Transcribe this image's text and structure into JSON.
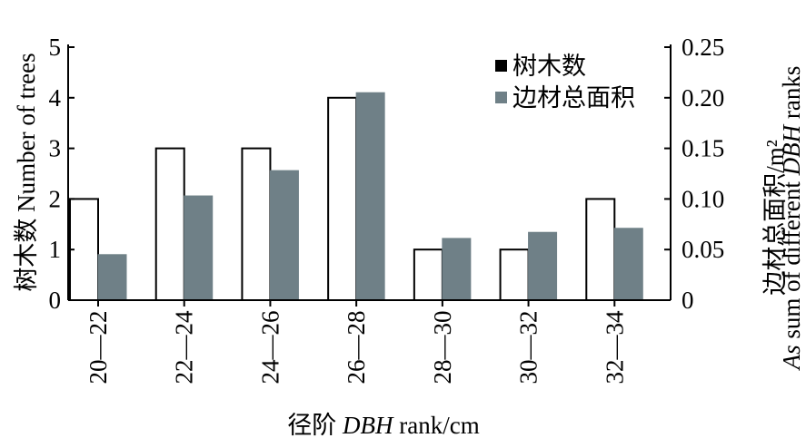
{
  "chart_data": {
    "type": "bar",
    "categories": [
      "20—22",
      "22—24",
      "24—26",
      "26—28",
      "28—30",
      "30—32",
      "32—34"
    ],
    "series": [
      {
        "name": "树木数",
        "axis": "left",
        "values": [
          2,
          3,
          3,
          4,
          1,
          1,
          2
        ],
        "fill": "#ffffff",
        "stroke": "#000000"
      },
      {
        "name": "边材总面积",
        "axis": "right",
        "values": [
          0.045,
          0.103,
          0.128,
          0.205,
          0.061,
          0.067,
          0.071
        ],
        "fill": "#6f8087",
        "stroke": "#6f8087"
      }
    ],
    "xlabel": {
      "zh": "径阶",
      "en_italic": "DBH",
      "en": " rank/cm"
    },
    "ylabel_left": "树木数 Number of trees",
    "ylabel_right": {
      "zh": "边材总面积/m²",
      "en_italic": "As",
      "en": " sum of different ",
      "en_italic2": "DBH",
      "en2": " ranks"
    },
    "ylim_left": [
      0,
      5
    ],
    "yticks_left": [
      "0",
      "1",
      "2",
      "3",
      "4",
      "5"
    ],
    "ylim_right": [
      0,
      0.25
    ],
    "yticks_right": [
      "0",
      "0.05",
      "0.10",
      "0.15",
      "0.20",
      "0.25"
    ],
    "legend_position": "top-right",
    "grid": false
  }
}
